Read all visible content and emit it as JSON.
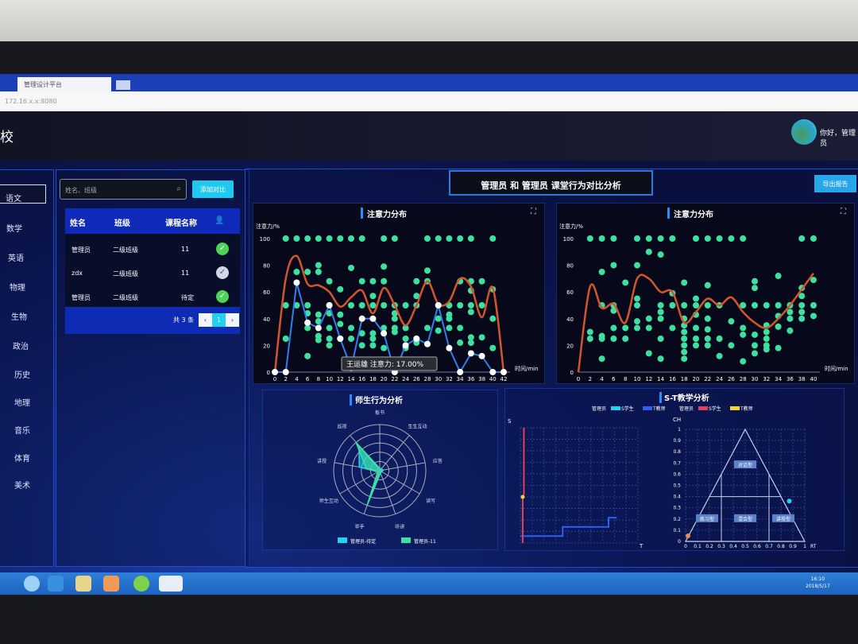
{
  "browser": {
    "tab_title": "管理设计平台",
    "address": "172.16.x.x:8080"
  },
  "header": {
    "title": "学校",
    "greeting": "你好，管理员"
  },
  "subjects": [
    "语文",
    "数学",
    "英语",
    "物理",
    "生物",
    "政治",
    "历史",
    "地理",
    "音乐",
    "体育",
    "美术"
  ],
  "search": {
    "placeholder": "姓名、班级",
    "add_button": "添加对比"
  },
  "table": {
    "columns": [
      "姓名",
      "班级",
      "课程名称"
    ],
    "rows": [
      {
        "name": "管理员",
        "class": "二级班级",
        "course": "11",
        "checked": true
      },
      {
        "name": "zdx",
        "class": "二级班级",
        "course": "11",
        "checked": false
      },
      {
        "name": "管理员",
        "class": "二级班级",
        "course": "待定",
        "checked": true
      }
    ],
    "total": "共 3 条",
    "page": "1"
  },
  "compare_title": "管理员 和 管理员 课堂行为对比分析",
  "export_button": "导出报告",
  "taskbar": {
    "time": "16:10",
    "date": "2018/5/17"
  },
  "colors": {
    "accent": "#21c8f0",
    "dots": "#3ee0a0",
    "avg_line": "#d2552e",
    "student_line": "#2f7ff0"
  },
  "chart_data": [
    {
      "type": "scatter",
      "title": "注意力分布",
      "ylabel": "注意力/%",
      "xlabel": "时间/min",
      "ylim": [
        0,
        100
      ],
      "yticks": [
        0,
        20,
        40,
        60,
        80,
        100
      ],
      "x": [
        0,
        2,
        4,
        6,
        8,
        10,
        12,
        14,
        16,
        18,
        20,
        22,
        24,
        26,
        28,
        30,
        32,
        34,
        36,
        38,
        40,
        42
      ],
      "dots": [
        [],
        [
          100,
          50,
          25
        ],
        [
          100,
          75,
          50
        ],
        [
          100,
          75,
          50,
          44,
          33,
          12
        ],
        [
          100,
          80,
          75,
          43,
          38,
          27,
          24
        ],
        [
          100,
          68,
          50,
          44,
          33,
          25,
          20
        ],
        [
          100,
          62,
          43,
          36,
          25
        ],
        [
          100,
          78,
          50,
          33,
          25
        ],
        [
          100,
          68,
          50,
          29,
          20
        ],
        [
          68,
          57,
          50,
          29,
          25,
          20
        ],
        [
          100,
          79,
          68,
          50,
          33,
          18
        ],
        [
          100,
          50,
          44,
          40,
          33,
          30
        ],
        [
          50,
          33,
          25,
          18
        ],
        [
          68,
          57,
          50,
          25,
          22
        ],
        [
          100,
          76,
          68,
          33,
          21
        ],
        [
          100,
          50,
          40,
          31
        ],
        [
          100,
          50,
          43,
          40,
          33
        ],
        [
          100,
          68,
          50,
          33,
          22
        ],
        [
          100,
          68,
          61,
          50,
          45,
          26,
          22
        ],
        [
          68,
          50,
          26
        ],
        [
          100,
          62,
          40,
          18
        ],
        []
      ],
      "avg_line": [
        0,
        70,
        87,
        66,
        65,
        60,
        49,
        56,
        61,
        44,
        63,
        50,
        35,
        50,
        68,
        51,
        53,
        70,
        64,
        41,
        63,
        0
      ],
      "student_line": [
        0,
        0,
        67,
        37,
        33,
        50,
        25,
        3,
        40,
        40,
        29,
        0,
        20,
        25,
        21,
        50,
        18,
        0,
        14,
        12,
        0,
        0
      ],
      "tooltip": "王运雄 注意力: 17.00%"
    },
    {
      "type": "scatter",
      "title": "注意力分布",
      "ylabel": "注意力/%",
      "xlabel": "时间/min",
      "ylim": [
        0,
        100
      ],
      "yticks": [
        0,
        20,
        40,
        60,
        80,
        100
      ],
      "x": [
        0,
        2,
        4,
        6,
        8,
        10,
        12,
        14,
        16,
        18,
        20,
        22,
        24,
        26,
        28,
        30,
        32,
        34,
        36,
        38,
        40
      ],
      "dots": [
        [],
        [
          100,
          30,
          25
        ],
        [
          100,
          75,
          50,
          27,
          25,
          10
        ],
        [
          100,
          80,
          50,
          46,
          33,
          25
        ],
        [
          67,
          33,
          25
        ],
        [
          100,
          80,
          55,
          50,
          38,
          33
        ],
        [
          100,
          90,
          40,
          33,
          14
        ],
        [
          100,
          88,
          50,
          45,
          40,
          25,
          10
        ],
        [
          100,
          59,
          50,
          33
        ],
        [
          67,
          50,
          40,
          35,
          30,
          25,
          20,
          15,
          10
        ],
        [
          100,
          55,
          50,
          43,
          33,
          25,
          20
        ],
        [
          100,
          65,
          50,
          40,
          32,
          25,
          20
        ],
        [
          100,
          50,
          25,
          12
        ],
        [
          100,
          38,
          20
        ],
        [
          100,
          50,
          33,
          28,
          8
        ],
        [
          68,
          63,
          50,
          28,
          20,
          14
        ],
        [
          50,
          35,
          30,
          25,
          20,
          17
        ],
        [
          72,
          50,
          42,
          34,
          18
        ],
        [
          50,
          45,
          40,
          31
        ],
        [
          100,
          63,
          57,
          50,
          45,
          40
        ],
        [
          100,
          69,
          50,
          42
        ]
      ],
      "avg_line": [
        0,
        64,
        48,
        51,
        37,
        70,
        70,
        60,
        60,
        37,
        45,
        55,
        50,
        56,
        45,
        37,
        33,
        40,
        50,
        62,
        74
      ]
    },
    {
      "type": "radar",
      "title": "师生行为分析",
      "axes": [
        "板书",
        "生生互动",
        "应答",
        "读写",
        "听讲",
        "举手",
        "师生互动",
        "讲授",
        "巡视"
      ],
      "series": [
        {
          "name": "管理员-待定",
          "color": "#22d3f0",
          "values": [
            5,
            5,
            8,
            5,
            5,
            75,
            5,
            45,
            70
          ]
        },
        {
          "name": "管理员-11",
          "color": "#3ee0a0",
          "values": [
            5,
            5,
            5,
            5,
            5,
            80,
            5,
            30,
            80
          ]
        }
      ],
      "max": 100
    },
    {
      "type": "line",
      "title": "S-T教学分析",
      "legend": [
        {
          "group": "管理员",
          "items": [
            {
              "name": "S学生",
              "color": "#22d3f0"
            },
            {
              "name": "T教师",
              "color": "#2f5ff0"
            }
          ]
        },
        {
          "group": "管理员",
          "items": [
            {
              "name": "S学生",
              "color": "#e0405a"
            },
            {
              "name": "T教师",
              "color": "#f2d23a"
            }
          ]
        }
      ],
      "st": {
        "xlabel": "T",
        "ylabel": "S",
        "series": [
          {
            "color": "#2f5ff0",
            "points": [
              [
                0,
                6
              ],
              [
                36,
                6
              ],
              [
                36,
                14
              ],
              [
                75,
                14
              ],
              [
                75,
                22
              ],
              [
                82,
                22
              ]
            ]
          },
          {
            "color": "#e0405a",
            "points": [
              [
                2,
                0
              ],
              [
                2,
                40
              ],
              [
                3,
                42
              ],
              [
                3,
                100
              ]
            ]
          }
        ],
        "yellow_point": [
          2,
          40
        ]
      },
      "rtch": {
        "xlabel": "RT",
        "ylabel": "CH",
        "ticks": [
          0,
          0.1,
          0.2,
          0.3,
          0.4,
          0.5,
          0.6,
          0.7,
          0.8,
          0.9,
          1
        ],
        "regions": [
          "对话型",
          "练习型",
          "混合型",
          "讲授型"
        ],
        "points": [
          {
            "rt": 0.02,
            "ch": 0.05,
            "color": "#f08a4a"
          },
          {
            "rt": 0.87,
            "ch": 0.36,
            "color": "#22d3f0"
          }
        ]
      }
    }
  ]
}
